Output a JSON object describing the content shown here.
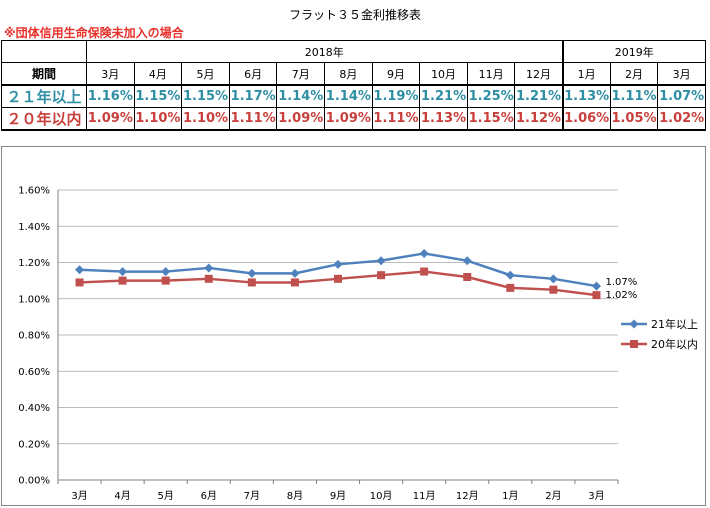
{
  "title": "フラット３５金利推移表",
  "note": "※団体信用生命保険未加入の場合",
  "table": {
    "header_label": "期間",
    "groups": [
      {
        "label": "2018年",
        "span": 10
      },
      {
        "label": "2019年",
        "span": 3
      }
    ],
    "months": [
      "3月",
      "4月",
      "5月",
      "6月",
      "7月",
      "8月",
      "9月",
      "10月",
      "11月",
      "12月",
      "1月",
      "2月",
      "3月"
    ],
    "rows": [
      {
        "label": "２１年以上",
        "values": [
          "1.16%",
          "1.15%",
          "1.15%",
          "1.17%",
          "1.14%",
          "1.14%",
          "1.19%",
          "1.21%",
          "1.25%",
          "1.21%",
          "1.13%",
          "1.11%",
          "1.07%"
        ],
        "color": "#2e8fa4"
      },
      {
        "label": "２０年以内",
        "values": [
          "1.09%",
          "1.10%",
          "1.10%",
          "1.11%",
          "1.09%",
          "1.09%",
          "1.11%",
          "1.13%",
          "1.15%",
          "1.12%",
          "1.06%",
          "1.05%",
          "1.02%"
        ],
        "color": "#c8403c"
      }
    ]
  },
  "chart_data": {
    "type": "line",
    "x": [
      "3月",
      "4月",
      "5月",
      "6月",
      "7月",
      "8月",
      "9月",
      "10月",
      "11月",
      "12月",
      "1月",
      "2月",
      "3月"
    ],
    "ylim": [
      0,
      1.6
    ],
    "yticks": [
      0.0,
      0.2,
      0.4,
      0.6,
      0.8,
      1.0,
      1.2,
      1.4,
      1.6
    ],
    "ytick_labels": [
      "0.00%",
      "0.20%",
      "0.40%",
      "0.60%",
      "0.80%",
      "1.00%",
      "1.20%",
      "1.40%",
      "1.60%"
    ],
    "grid": true,
    "legend_position": "right",
    "series": [
      {
        "name": "21年以上",
        "values": [
          1.16,
          1.15,
          1.15,
          1.17,
          1.14,
          1.14,
          1.19,
          1.21,
          1.25,
          1.21,
          1.13,
          1.11,
          1.07
        ],
        "color": "#4f81bd",
        "marker": "diamond",
        "last_label": "1.07%"
      },
      {
        "name": "20年以内",
        "values": [
          1.09,
          1.1,
          1.1,
          1.11,
          1.09,
          1.09,
          1.11,
          1.13,
          1.15,
          1.12,
          1.06,
          1.05,
          1.02
        ],
        "color": "#c0504d",
        "marker": "square",
        "last_label": "1.02%"
      }
    ]
  }
}
